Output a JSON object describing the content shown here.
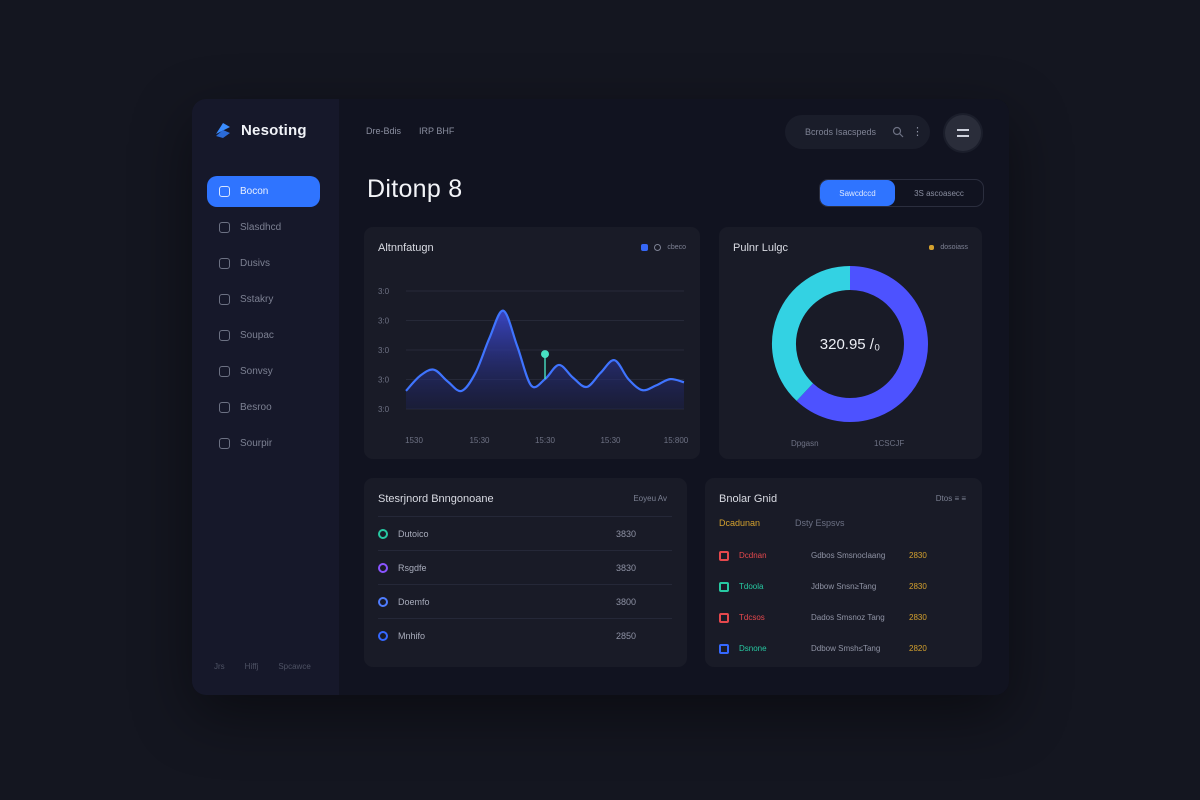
{
  "app": {
    "name": "Nesoting"
  },
  "sidebar": {
    "items": [
      {
        "label": "Bocon",
        "icon": "dashboard-icon",
        "active": true
      },
      {
        "label": "Slasdhcd",
        "icon": "chart-icon"
      },
      {
        "label": "Dusivs",
        "icon": "document-icon"
      },
      {
        "label": "Sstakry",
        "icon": "calendar-icon"
      },
      {
        "label": "Soupac",
        "icon": "user-icon"
      },
      {
        "label": "Sonvsy",
        "icon": "settings-icon"
      },
      {
        "label": "Besroo",
        "icon": "message-icon"
      },
      {
        "label": "Sourpir",
        "icon": "shield-icon"
      }
    ],
    "footer": [
      "Jrs",
      "Hiffj",
      "Spcawce"
    ]
  },
  "header": {
    "breadcrumbs": [
      "Dre-Bdis",
      "IRP BHF"
    ],
    "search": {
      "placeholder": "Bcrods Isacspeds"
    },
    "menu_glyph": "⋮",
    "title": "Ditonp  8",
    "segments": [
      {
        "label": "Sawcdccd",
        "active": true
      },
      {
        "label": "3S  ascoasecc",
        "active": false
      }
    ]
  },
  "area_card": {
    "title": "Altnnfatugn",
    "legend": "cbeco"
  },
  "donut_card": {
    "title": "Pulnr Lulgc",
    "legend": "dosoiass",
    "center_value": "320.95 /₀",
    "footer": [
      "Dpgasn",
      "1CSCJF"
    ]
  },
  "list_card": {
    "title": "Stesrjnord Bnngonoane",
    "header_right": "Eoyeu  Av",
    "rows": [
      {
        "label": "Dutoico",
        "value": "3830",
        "color": "#27c9a2"
      },
      {
        "label": "Rsgdfe",
        "value": "3830",
        "color": "#8a54ff"
      },
      {
        "label": "Doemfo",
        "value": "3800",
        "color": "#4f7dff"
      },
      {
        "label": "Mnhifo",
        "value": "2850",
        "color": "#3568ff"
      }
    ]
  },
  "tx_card": {
    "title": "Bnolar Gnid",
    "header_right": "Dtos  ≡  ≡",
    "sub": [
      "Dcadunan",
      "Dsty Espsvs"
    ],
    "rows": [
      {
        "name": "Dcdnan",
        "desc": "Gdbos Smsnoclaang",
        "amount": "2830",
        "color": "#e5484d"
      },
      {
        "name": "Tdoola",
        "desc": "Jdbow Snsn≥Tang",
        "amount": "2830",
        "color": "#27c9a2"
      },
      {
        "name": "Tdcsos",
        "desc": "Dados Smsnoz Tang",
        "amount": "2830",
        "color": "#e5484d"
      },
      {
        "name": "Dsnone",
        "desc": "Ddbow Smsh≤Tang",
        "amount": "2820",
        "color": "#3568ff"
      }
    ]
  },
  "colors": {
    "accent": "#2f74ff",
    "area": "#3b66f5",
    "donut_a": "#4d52ff",
    "donut_b": "#33d2e3",
    "amber": "#d4a12e"
  },
  "chart_data": [
    {
      "type": "area",
      "title": "Altnnfatugn",
      "x": [
        0,
        1,
        2,
        3,
        4,
        5,
        6,
        7,
        8,
        9,
        10,
        11,
        12,
        13,
        14,
        15,
        16,
        17,
        18,
        19,
        20
      ],
      "x_tick_labels": [
        "1530",
        "15:30",
        "15:30",
        "15:30",
        "15:800"
      ],
      "y": [
        3,
        22,
        30,
        15,
        3,
        26,
        70,
        105,
        60,
        10,
        18,
        36,
        20,
        8,
        26,
        42,
        18,
        4,
        10,
        18,
        14
      ],
      "y_tick_labels": [
        "3:0",
        "3:0",
        "3:0",
        "3:0",
        "3:0"
      ],
      "ylim": [
        -20,
        130
      ],
      "marker_index": 10
    },
    {
      "type": "pie",
      "title": "Pulnr Lulgc",
      "values": [
        0.62,
        0.38
      ],
      "colors": [
        "#4d52ff",
        "#33d2e3"
      ]
    }
  ]
}
